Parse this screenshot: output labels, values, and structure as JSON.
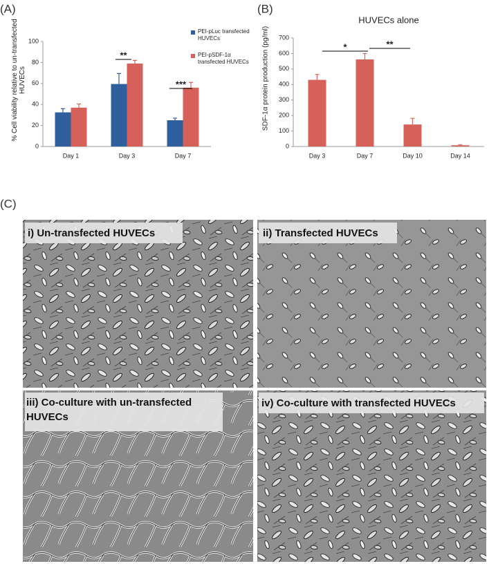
{
  "panel_labels": [
    "(A)",
    "(B)",
    "(C)"
  ],
  "chart_data": [
    {
      "type": "bar",
      "ylabel": "% Cell viability relative to un-transfected HUVECs",
      "categories": [
        "Day 1",
        "Day 3",
        "Day 7"
      ],
      "series": [
        {
          "name": "PEI-pLuc transfected HUVECs",
          "color": "#2f5f9c",
          "values": [
            32.5,
            59.5,
            25
          ],
          "errors": [
            3.5,
            10,
            2
          ]
        },
        {
          "name": "PEI-pSDF-1α transfected HUVECs",
          "color": "#d5615a",
          "values": [
            37,
            79,
            56
          ],
          "errors": [
            3.5,
            3,
            5
          ]
        }
      ],
      "ylim": [
        0,
        100
      ],
      "yticks": [
        0,
        20,
        40,
        60,
        80,
        100
      ],
      "grid": false,
      "legend": "upper right",
      "annotations": [
        "**",
        "***"
      ]
    },
    {
      "type": "bar",
      "title": "HUVECs alone",
      "ylabel": "SDF-1α protein production (pg/ml)",
      "categories": [
        "Day 3",
        "Day 7",
        "Day 10",
        "Day 14"
      ],
      "series": [
        {
          "name": "SDF-1α",
          "color": "#d5615a",
          "values": [
            430,
            562,
            142,
            8
          ],
          "errors": [
            35,
            38,
            40,
            4
          ]
        }
      ],
      "ylim": [
        0,
        700
      ],
      "yticks": [
        0,
        100,
        200,
        300,
        400,
        500,
        600,
        700
      ],
      "grid": false,
      "annotations": [
        "*",
        "**"
      ]
    }
  ],
  "micrographs": [
    "i) Un-transfected HUVECs",
    "ii) Transfected HUVECs",
    "iii) Co-culture with un-transfected HUVECs",
    "iv) Co-culture with transfected HUVECs"
  ]
}
